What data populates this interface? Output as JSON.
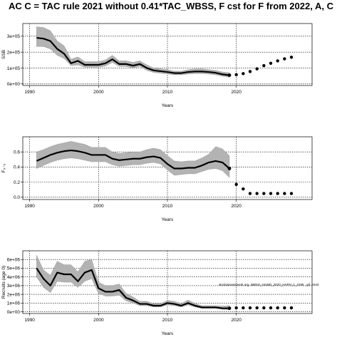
{
  "title": "AC C = TAC rule 2021 without 0.41*TAC_WBSS, F cst for F from 2022, A, C",
  "annotation": "stockassessment.org, WBSS_HAWG_2020_HAPH_1_3195 , git: e2a3",
  "chart_data": [
    {
      "type": "line",
      "ylabel": "SSB",
      "xlabel": "Years",
      "xlim": [
        1989,
        2031
      ],
      "ylim": [
        -10000,
        380000
      ],
      "xticks": [
        1990,
        2000,
        2010,
        2020
      ],
      "yticks": [
        0,
        100000,
        200000,
        300000
      ],
      "ytick_labels": [
        "0e+00",
        "1e+05",
        "2e+05",
        "3e+05"
      ],
      "grid": true,
      "series": [
        {
          "x": [
            1991,
            1992,
            1993,
            1994,
            1995,
            1996,
            1997,
            1998,
            1999,
            2000,
            2001,
            2002,
            2003,
            2004,
            2005,
            2006,
            2007,
            2008,
            2009,
            2010,
            2011,
            2012,
            2013,
            2014,
            2015,
            2016,
            2017,
            2018,
            2019
          ],
          "y": [
            290000,
            285000,
            270000,
            220000,
            190000,
            130000,
            145000,
            120000,
            120000,
            120000,
            130000,
            155000,
            125000,
            125000,
            115000,
            125000,
            100000,
            85000,
            80000,
            75000,
            68000,
            68000,
            75000,
            78000,
            78000,
            75000,
            70000,
            60000,
            55000
          ],
          "lower": [
            235000,
            235000,
            220000,
            180000,
            160000,
            115000,
            120000,
            105000,
            105000,
            105000,
            112000,
            135000,
            110000,
            110000,
            100000,
            110000,
            85000,
            72000,
            67000,
            63000,
            57000,
            57000,
            62000,
            65000,
            65000,
            62000,
            57000,
            48000,
            42000
          ],
          "upper": [
            360000,
            355000,
            335000,
            270000,
            240000,
            155000,
            170000,
            140000,
            140000,
            140000,
            150000,
            180000,
            145000,
            145000,
            135000,
            145000,
            120000,
            100000,
            95000,
            90000,
            80000,
            80000,
            90000,
            95000,
            95000,
            90000,
            85000,
            75000,
            70000
          ]
        }
      ],
      "forecast": {
        "x": [
          2020,
          2021,
          2022,
          2023,
          2024,
          2025,
          2026,
          2027,
          2028
        ],
        "y": [
          58000,
          65000,
          78000,
          95000,
          115000,
          130000,
          145000,
          158000,
          168000
        ]
      }
    },
    {
      "type": "line",
      "ylabel": "F₃₋₆",
      "xlabel": "Years",
      "xlim": [
        1989,
        2031
      ],
      "ylim": [
        -0.03,
        0.8
      ],
      "xticks": [
        1990,
        2000,
        2010,
        2020
      ],
      "yticks": [
        0,
        0.2,
        0.4,
        0.6
      ],
      "ytick_labels": [
        "0.0",
        "0.2",
        "0.4",
        "0.6"
      ],
      "grid": true,
      "series": [
        {
          "x": [
            1991,
            1992,
            1993,
            1994,
            1995,
            1996,
            1997,
            1998,
            1999,
            2000,
            2001,
            2002,
            2003,
            2004,
            2005,
            2006,
            2007,
            2008,
            2009,
            2010,
            2011,
            2012,
            2013,
            2014,
            2015,
            2016,
            2017,
            2018,
            2019
          ],
          "y": [
            0.48,
            0.52,
            0.56,
            0.59,
            0.61,
            0.62,
            0.61,
            0.59,
            0.56,
            0.56,
            0.56,
            0.51,
            0.49,
            0.5,
            0.51,
            0.51,
            0.53,
            0.54,
            0.52,
            0.44,
            0.38,
            0.38,
            0.39,
            0.39,
            0.42,
            0.46,
            0.48,
            0.46,
            0.38
          ],
          "lower": [
            0.38,
            0.42,
            0.46,
            0.49,
            0.51,
            0.52,
            0.51,
            0.49,
            0.47,
            0.47,
            0.47,
            0.43,
            0.41,
            0.42,
            0.43,
            0.43,
            0.45,
            0.46,
            0.44,
            0.36,
            0.29,
            0.3,
            0.31,
            0.31,
            0.34,
            0.37,
            0.38,
            0.35,
            0.26
          ],
          "upper": [
            0.6,
            0.63,
            0.67,
            0.7,
            0.72,
            0.74,
            0.72,
            0.7,
            0.66,
            0.66,
            0.66,
            0.6,
            0.58,
            0.59,
            0.6,
            0.6,
            0.63,
            0.65,
            0.63,
            0.55,
            0.48,
            0.47,
            0.48,
            0.48,
            0.52,
            0.57,
            0.67,
            0.64,
            0.55
          ]
        }
      ],
      "forecast": {
        "x": [
          2020,
          2021,
          2022,
          2023,
          2024,
          2025,
          2026,
          2027,
          2028
        ],
        "y": [
          0.17,
          0.11,
          0.05,
          0.05,
          0.05,
          0.05,
          0.05,
          0.05,
          0.05
        ]
      }
    },
    {
      "type": "line",
      "ylabel": "Recruits (age 0)",
      "xlabel": "Years",
      "xlim": [
        1989,
        2031
      ],
      "ylim": [
        -200000,
        7000000
      ],
      "xticks": [
        1990,
        2000,
        2010,
        2020
      ],
      "yticks": [
        0,
        1000000,
        2000000,
        3000000,
        4000000,
        5000000,
        6000000
      ],
      "ytick_labels": [
        "0e+00",
        "1e+06",
        "2e+06",
        "3e+06",
        "4e+06",
        "5e+06",
        "6e+06"
      ],
      "grid": true,
      "series": [
        {
          "x": [
            1991,
            1992,
            1993,
            1994,
            1995,
            1996,
            1997,
            1998,
            1999,
            2000,
            2001,
            2002,
            2003,
            2004,
            2005,
            2006,
            2007,
            2008,
            2009,
            2010,
            2011,
            2012,
            2013,
            2014,
            2015,
            2016,
            2017,
            2018,
            2019
          ],
          "y": [
            5000000,
            3800000,
            3000000,
            4500000,
            4300000,
            4300000,
            3500000,
            4500000,
            4800000,
            2700000,
            2300000,
            2300000,
            2500000,
            1600000,
            1300000,
            900000,
            900000,
            700000,
            700000,
            1000000,
            900000,
            700000,
            1000000,
            700000,
            500000,
            500000,
            500000,
            400000,
            400000
          ],
          "lower": [
            4000000,
            2800000,
            2200000,
            3500000,
            3400000,
            3400000,
            2800000,
            3500000,
            3800000,
            2100000,
            1800000,
            1800000,
            1900000,
            1250000,
            1000000,
            700000,
            700000,
            550000,
            550000,
            780000,
            700000,
            550000,
            780000,
            550000,
            380000,
            380000,
            380000,
            280000,
            250000
          ],
          "upper": [
            6500000,
            4800000,
            4200000,
            5800000,
            5400000,
            5400000,
            4600000,
            5800000,
            6000000,
            3400000,
            3000000,
            3000000,
            3200000,
            2100000,
            1700000,
            1200000,
            1200000,
            950000,
            950000,
            1300000,
            1200000,
            950000,
            1350000,
            950000,
            700000,
            700000,
            700000,
            650000,
            700000
          ]
        }
      ],
      "forecast": {
        "x": [
          2020,
          2021,
          2022,
          2023,
          2024,
          2025,
          2026,
          2027,
          2028
        ],
        "y": [
          450000,
          450000,
          450000,
          450000,
          450000,
          450000,
          450000,
          450000,
          450000
        ]
      }
    }
  ]
}
